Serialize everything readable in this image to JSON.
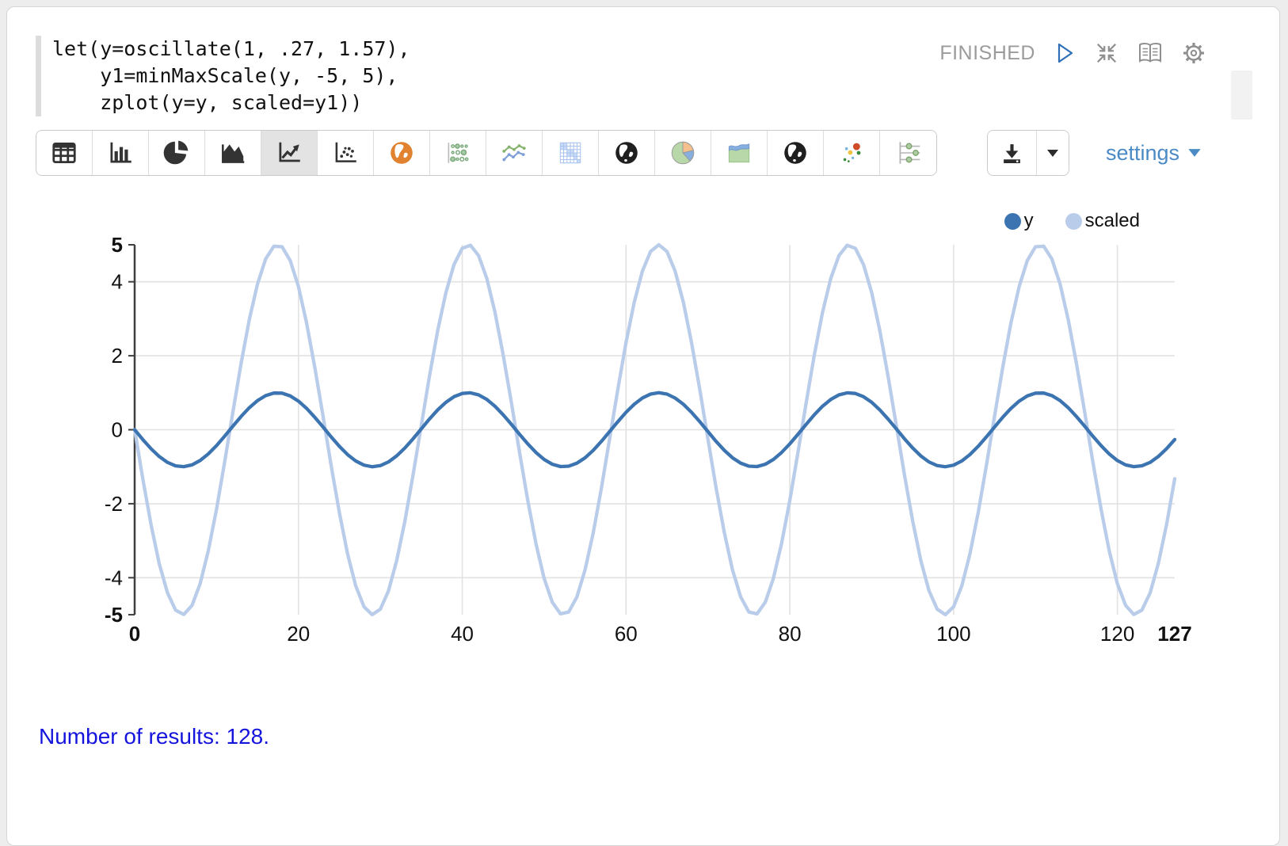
{
  "colors": {
    "series_y": "#3b74b0",
    "series_scaled": "#b9cce9",
    "settings_link": "#4a8bc6",
    "results_text": "#1414dd",
    "status_text": "#9b9b9b",
    "gridline": "#e2e2e2",
    "axis": "#3f3f3f"
  },
  "editor": {
    "code_lines": [
      "let(y=oscillate(1, .27, 1.57),",
      "    y1=minMaxScale(y, -5, 5),",
      "    zplot(y=y, scaled=y1))"
    ],
    "status": "FINISHED"
  },
  "toolbar": {
    "chart_types": [
      {
        "icon": "table",
        "label": "table",
        "selected": false
      },
      {
        "icon": "bar",
        "label": "bar-chart",
        "selected": false
      },
      {
        "icon": "pie",
        "label": "pie-chart",
        "selected": false
      },
      {
        "icon": "area",
        "label": "area-chart",
        "selected": false
      },
      {
        "icon": "line",
        "label": "line-chart",
        "selected": true
      },
      {
        "icon": "scatter",
        "label": "scatter-chart",
        "selected": false
      },
      {
        "icon": "globe-orange",
        "label": "map-chart",
        "selected": false
      },
      {
        "icon": "dot-grid",
        "label": "dot-matrix-chart",
        "selected": false
      },
      {
        "icon": "multiline",
        "label": "multi-line-chart",
        "selected": false
      },
      {
        "icon": "heatmap",
        "label": "heatmap-chart",
        "selected": false
      },
      {
        "icon": "globe-dark",
        "label": "globe-chart-1",
        "selected": false
      },
      {
        "icon": "pie-color",
        "label": "pie-color-chart",
        "selected": false
      },
      {
        "icon": "area-color",
        "label": "stacked-area-chart",
        "selected": false
      },
      {
        "icon": "globe-dark",
        "label": "globe-chart-2",
        "selected": false
      },
      {
        "icon": "scatter-color",
        "label": "bubble-chart",
        "selected": false
      },
      {
        "icon": "dot-rows",
        "label": "dot-row-chart",
        "selected": false
      }
    ],
    "settings_label": "settings"
  },
  "chart_data": {
    "type": "line",
    "title": "",
    "xlabel": "",
    "ylabel": "",
    "grid": true,
    "legend_position": "top-right",
    "n_points": 128,
    "x": {
      "min": 0,
      "max": 127,
      "ticks": [
        0,
        20,
        40,
        60,
        80,
        100,
        120,
        127
      ],
      "bold_ticks": [
        0,
        127
      ]
    },
    "y": {
      "min": -5,
      "max": 5,
      "ticks": [
        5,
        4,
        2,
        0,
        -2,
        -4,
        -5
      ],
      "bold_ticks": [
        5,
        -5
      ]
    },
    "series": [
      {
        "name": "y",
        "color": "#3b74b0",
        "generator": {
          "type": "cosine",
          "amplitude": 1,
          "frequency": 0.27,
          "phase": 1.57
        }
      },
      {
        "name": "scaled",
        "color": "#b9cce9",
        "generator": {
          "type": "cosine",
          "amplitude": 5,
          "frequency": 0.27,
          "phase": 1.57
        }
      }
    ]
  },
  "footer": {
    "results_text": "Number of results: 128."
  }
}
